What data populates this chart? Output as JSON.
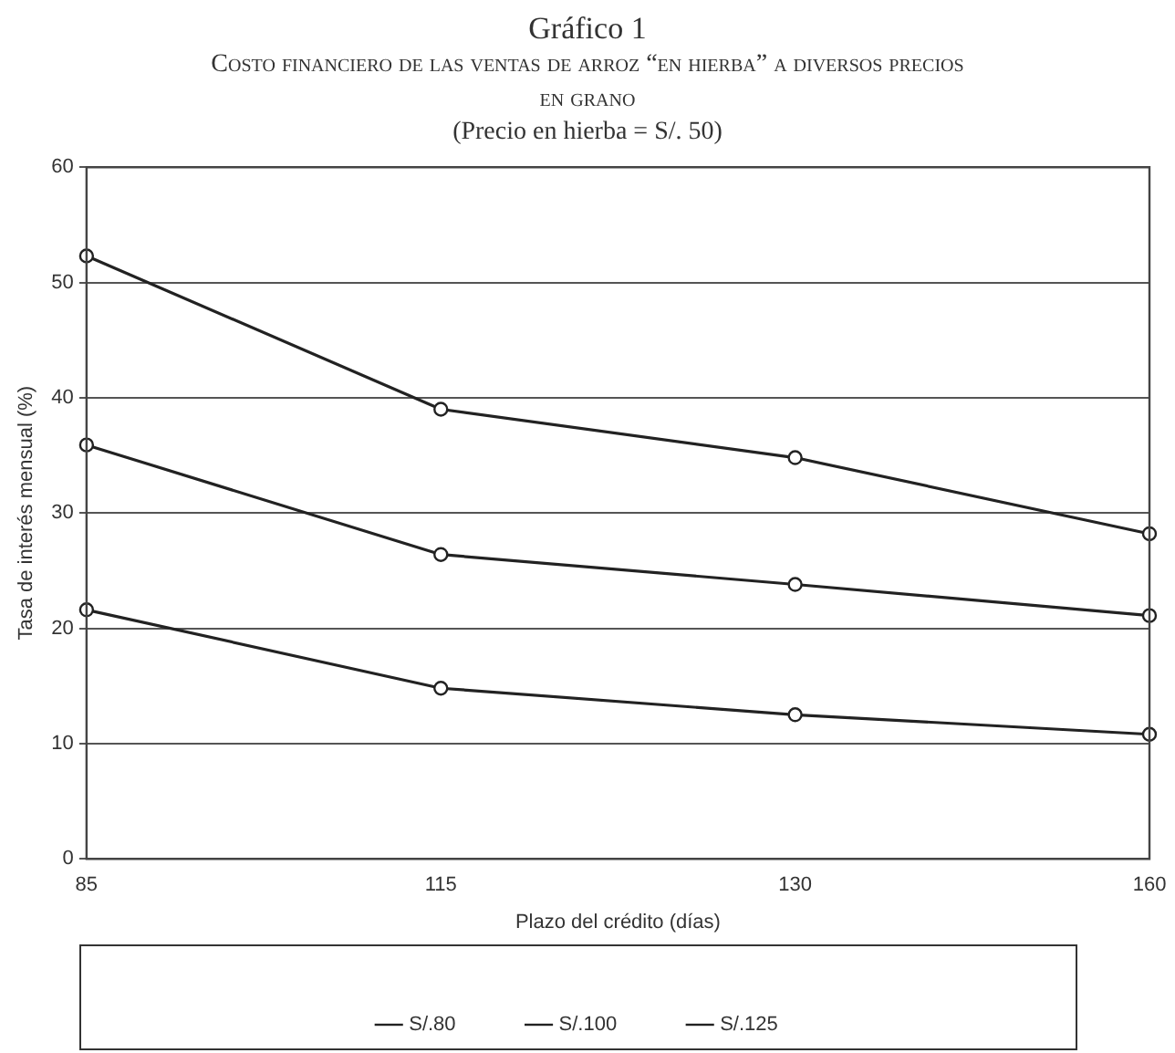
{
  "chart_data": {
    "type": "line",
    "title": "Gráfico 1",
    "subtitle": "Costo financiero de las ventas de arroz “en hierba” a diversos precios en grano",
    "annotations": [
      "(Precio en hierba = S/. 50)"
    ],
    "xlabel": "Plazo del crédito (días)",
    "ylabel": "Tasa de interés mensual (%)",
    "categories": [
      "85",
      "115",
      "130",
      "160"
    ],
    "series": [
      {
        "name": "S/.80",
        "color": "#222222",
        "values": [
          21.6,
          14.8,
          12.5,
          10.8
        ]
      },
      {
        "name": "S/.100",
        "color": "#222222",
        "values": [
          35.9,
          26.4,
          23.8,
          21.1
        ]
      },
      {
        "name": "S/.125",
        "color": "#222222",
        "values": [
          52.3,
          39,
          34.8,
          28.2
        ]
      }
    ],
    "ylim": [
      0,
      60
    ],
    "yticks": [
      0,
      10,
      20,
      30,
      40,
      50,
      60
    ],
    "grid": "y",
    "legend": "bottom",
    "marker": "circle",
    "line_style": "solid"
  }
}
